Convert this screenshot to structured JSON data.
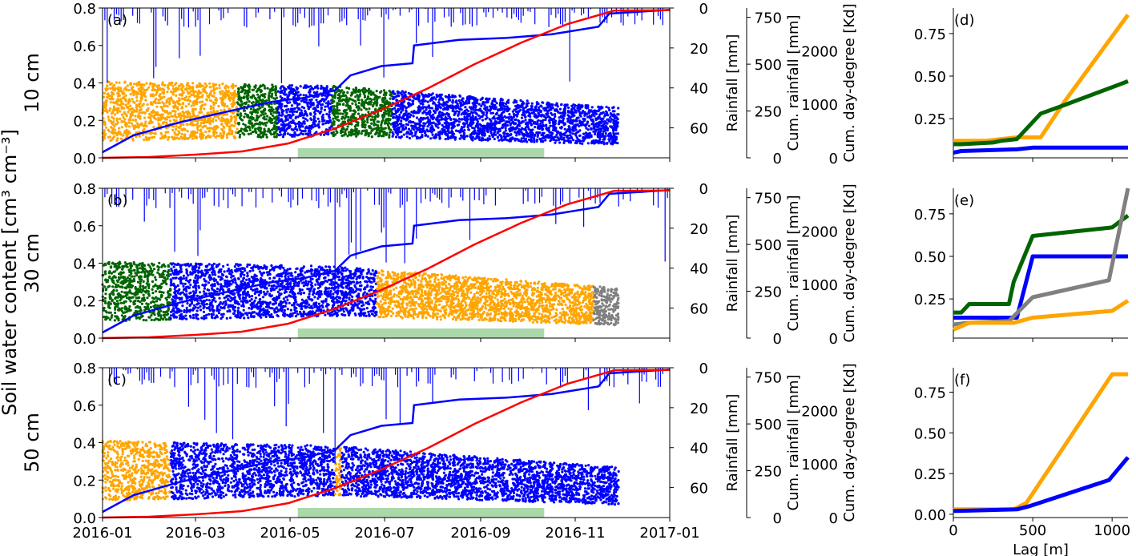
{
  "figure": {
    "ylabel_shared": "Soil water content [cm³ cm⁻³]",
    "row_labels": [
      "10 cm",
      "30 cm",
      "50 cm"
    ],
    "right_axis_labels": {
      "rainfall": "Rainfall [mm]",
      "cum_rainfall": "Cum. rainfall [mm]",
      "cum_degree_days": "Cum. day-degree [Kd]"
    },
    "colors": {
      "orange": "#FFA500",
      "green": "#006400",
      "blue": "#0000FF",
      "gray": "#808080",
      "red": "#FF0000",
      "season": "#8FCB8F"
    }
  },
  "chart_data": [
    {
      "panel": "(a)",
      "type": "scatter",
      "xlim": [
        "2016-01",
        "2017-01"
      ],
      "xticks": [
        "2016-01",
        "2016-03",
        "2016-05",
        "2016-07",
        "2016-09",
        "2016-11",
        "2017-01"
      ],
      "ylim": [
        0.0,
        0.8
      ],
      "yticks": [
        "0.0",
        "0.2",
        "0.4",
        "0.6",
        "0.8"
      ],
      "rain_ylim": [
        0,
        75
      ],
      "rain_ticks": [
        "0",
        "20",
        "40",
        "60"
      ],
      "cum_rain_ticks": [
        "0",
        "250",
        "500",
        "750"
      ],
      "dd_ticks": [
        "0",
        "1000",
        "2000"
      ],
      "growing_season": [
        "2016-05-06",
        "2016-10-12"
      ],
      "segments": [
        {
          "color": "orange",
          "x": [
            "2016-01-01",
            "2016-03-28"
          ]
        },
        {
          "color": "green",
          "x": [
            "2016-03-28",
            "2016-04-23"
          ]
        },
        {
          "color": "blue",
          "x": [
            "2016-04-23",
            "2016-05-28"
          ]
        },
        {
          "color": "green",
          "x": [
            "2016-05-28",
            "2016-07-06"
          ]
        },
        {
          "color": "blue",
          "x": [
            "2016-07-06",
            "2016-11-29"
          ]
        }
      ],
      "cum_rainfall_mm": [
        [
          0,
          30
        ],
        [
          20,
          120
        ],
        [
          50,
          190
        ],
        [
          90,
          265
        ],
        [
          110,
          300
        ],
        [
          130,
          320
        ],
        [
          150,
          360
        ],
        [
          160,
          440
        ],
        [
          180,
          490
        ],
        [
          200,
          505
        ],
        [
          201,
          600
        ],
        [
          230,
          630
        ],
        [
          260,
          640
        ],
        [
          290,
          660
        ],
        [
          320,
          700
        ],
        [
          327,
          770
        ],
        [
          366,
          790
        ]
      ],
      "cum_degree_days_kd": [
        [
          0,
          0
        ],
        [
          30,
          15
        ],
        [
          60,
          60
        ],
        [
          90,
          120
        ],
        [
          120,
          270
        ],
        [
          150,
          550
        ],
        [
          180,
          900
        ],
        [
          210,
          1300
        ],
        [
          240,
          1750
        ],
        [
          270,
          2150
        ],
        [
          300,
          2500
        ],
        [
          330,
          2750
        ],
        [
          366,
          2760
        ]
      ],
      "variogram": {
        "panel": "(d)",
        "xlim": [
          0,
          1100
        ],
        "xticks": [],
        "yticks": [
          "0.25",
          "0.50",
          "0.75"
        ],
        "series": [
          {
            "color": "orange",
            "x": [
              0,
              100,
              200,
              300,
              400,
              550,
              700,
              1100
            ],
            "y": [
              0.12,
              0.12,
              0.12,
              0.13,
              0.14,
              0.14,
              0.35,
              0.86
            ]
          },
          {
            "color": "green",
            "x": [
              0,
              50,
              250,
              300,
              400,
              550,
              700,
              1100
            ],
            "y": [
              0.1,
              0.1,
              0.11,
              0.12,
              0.13,
              0.28,
              0.33,
              0.47
            ]
          },
          {
            "color": "blue",
            "x": [
              0,
              50,
              400,
              500,
              1100
            ],
            "y": [
              0.05,
              0.06,
              0.07,
              0.08,
              0.08
            ]
          }
        ]
      }
    },
    {
      "panel": "(b)",
      "type": "scatter",
      "xlim": [
        "2016-01",
        "2017-01"
      ],
      "xticks": [
        "2016-01",
        "2016-03",
        "2016-05",
        "2016-07",
        "2016-09",
        "2016-11",
        "2017-01"
      ],
      "ylim": [
        0.0,
        0.8
      ],
      "yticks": [
        "0.0",
        "0.2",
        "0.4",
        "0.6",
        "0.8"
      ],
      "rain_ylim": [
        0,
        75
      ],
      "rain_ticks": [
        "0",
        "20",
        "40",
        "60"
      ],
      "cum_rain_ticks": [
        "0",
        "250",
        "500",
        "750"
      ],
      "dd_ticks": [
        "0",
        "1000",
        "2000"
      ],
      "growing_season": [
        "2016-05-06",
        "2016-10-12"
      ],
      "segments": [
        {
          "color": "green",
          "x": [
            "2016-01-01",
            "2016-02-14"
          ]
        },
        {
          "color": "blue",
          "x": [
            "2016-02-14",
            "2016-06-26"
          ]
        },
        {
          "color": "orange",
          "x": [
            "2016-06-26",
            "2016-11-13"
          ]
        },
        {
          "color": "gray",
          "x": [
            "2016-11-13",
            "2016-11-29"
          ]
        }
      ],
      "cum_rainfall_mm": [
        [
          0,
          30
        ],
        [
          20,
          120
        ],
        [
          50,
          190
        ],
        [
          90,
          265
        ],
        [
          110,
          300
        ],
        [
          130,
          320
        ],
        [
          150,
          360
        ],
        [
          160,
          440
        ],
        [
          180,
          490
        ],
        [
          200,
          505
        ],
        [
          201,
          600
        ],
        [
          230,
          630
        ],
        [
          260,
          640
        ],
        [
          290,
          660
        ],
        [
          320,
          700
        ],
        [
          327,
          770
        ],
        [
          366,
          790
        ]
      ],
      "cum_degree_days_kd": [
        [
          0,
          0
        ],
        [
          30,
          15
        ],
        [
          60,
          60
        ],
        [
          90,
          120
        ],
        [
          120,
          270
        ],
        [
          150,
          550
        ],
        [
          180,
          900
        ],
        [
          210,
          1300
        ],
        [
          240,
          1750
        ],
        [
          270,
          2150
        ],
        [
          300,
          2500
        ],
        [
          330,
          2750
        ],
        [
          366,
          2760
        ]
      ],
      "variogram": {
        "panel": "(e)",
        "xlim": [
          0,
          1100
        ],
        "xticks": [],
        "yticks": [
          "0.25",
          "0.50",
          "0.75"
        ],
        "series": [
          {
            "color": "green",
            "x": [
              0,
              50,
              100,
              350,
              380,
              500,
              1000,
              1100
            ],
            "y": [
              0.17,
              0.17,
              0.22,
              0.22,
              0.35,
              0.62,
              0.67,
              0.74
            ]
          },
          {
            "color": "blue",
            "x": [
              0,
              400,
              500,
              1100
            ],
            "y": [
              0.14,
              0.14,
              0.5,
              0.5
            ]
          },
          {
            "color": "gray",
            "x": [
              0,
              100,
              350,
              500,
              980,
              1100
            ],
            "y": [
              0.1,
              0.11,
              0.12,
              0.26,
              0.36,
              0.9
            ]
          },
          {
            "color": "orange",
            "x": [
              0,
              100,
              380,
              500,
              1000,
              1100
            ],
            "y": [
              0.07,
              0.11,
              0.11,
              0.14,
              0.18,
              0.24
            ]
          }
        ]
      }
    },
    {
      "panel": "(c)",
      "type": "scatter",
      "xlim": [
        "2016-01",
        "2017-01"
      ],
      "xticks": [
        "2016-01",
        "2016-03",
        "2016-05",
        "2016-07",
        "2016-09",
        "2016-11",
        "2017-01"
      ],
      "ylim": [
        0.0,
        0.8
      ],
      "yticks": [
        "0.0",
        "0.2",
        "0.4",
        "0.6",
        "0.8"
      ],
      "rain_ylim": [
        0,
        75
      ],
      "rain_ticks": [
        "0",
        "20",
        "40",
        "60"
      ],
      "cum_rain_ticks": [
        "0",
        "250",
        "500",
        "750"
      ],
      "dd_ticks": [
        "0",
        "1000",
        "2000"
      ],
      "growing_season": [
        "2016-05-06",
        "2016-10-12"
      ],
      "segments": [
        {
          "color": "orange",
          "x": [
            "2016-01-01",
            "2016-02-14"
          ]
        },
        {
          "color": "blue",
          "x": [
            "2016-02-14",
            "2016-05-30"
          ]
        },
        {
          "color": "orange",
          "x": [
            "2016-05-30",
            "2016-06-03"
          ]
        },
        {
          "color": "blue",
          "x": [
            "2016-06-03",
            "2016-11-29"
          ]
        }
      ],
      "cum_rainfall_mm": [
        [
          0,
          30
        ],
        [
          20,
          120
        ],
        [
          50,
          190
        ],
        [
          90,
          265
        ],
        [
          110,
          300
        ],
        [
          130,
          320
        ],
        [
          150,
          360
        ],
        [
          160,
          440
        ],
        [
          180,
          490
        ],
        [
          200,
          505
        ],
        [
          201,
          600
        ],
        [
          230,
          630
        ],
        [
          260,
          640
        ],
        [
          290,
          660
        ],
        [
          320,
          700
        ],
        [
          327,
          770
        ],
        [
          366,
          790
        ]
      ],
      "cum_degree_days_kd": [
        [
          0,
          0
        ],
        [
          30,
          15
        ],
        [
          60,
          60
        ],
        [
          90,
          120
        ],
        [
          120,
          270
        ],
        [
          150,
          550
        ],
        [
          180,
          900
        ],
        [
          210,
          1300
        ],
        [
          240,
          1750
        ],
        [
          270,
          2150
        ],
        [
          300,
          2500
        ],
        [
          330,
          2750
        ],
        [
          366,
          2760
        ]
      ],
      "variogram": {
        "panel": "(f)",
        "xlim": [
          0,
          1100
        ],
        "xlabel": "Lag [m]",
        "xticks": [
          "0",
          "500",
          "1000"
        ],
        "yticks": [
          "0.00",
          "0.25",
          "0.50",
          "0.75"
        ],
        "series": [
          {
            "color": "orange",
            "x": [
              0,
              300,
              380,
              460,
              700,
              1000,
              1100
            ],
            "y": [
              0.03,
              0.03,
              0.03,
              0.07,
              0.42,
              0.86,
              0.86
            ]
          },
          {
            "color": "blue",
            "x": [
              0,
              400,
              480,
              980,
              1100
            ],
            "y": [
              0.02,
              0.03,
              0.05,
              0.21,
              0.35
            ]
          }
        ]
      }
    }
  ]
}
